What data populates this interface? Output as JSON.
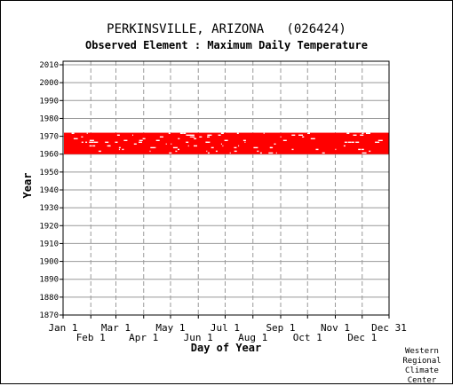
{
  "title": "PERKINSVILLE, ARIZONA   (026424)",
  "subtitle": "Observed Element : Maximum Daily Temperature",
  "credit": [
    "Western",
    "Regional",
    "Climate",
    "Center"
  ],
  "chart_data": {
    "type": "heatmap",
    "xlabel": "Day of Year",
    "ylabel": "Year",
    "xlim": [
      1,
      365
    ],
    "ylim": [
      1870,
      2012
    ],
    "month_ticks": [
      {
        "label": "Jan 1",
        "day": 1,
        "row": 0
      },
      {
        "label": "Feb 1",
        "day": 32,
        "row": 1
      },
      {
        "label": "Mar 1",
        "day": 60,
        "row": 0
      },
      {
        "label": "Apr 1",
        "day": 91,
        "row": 1
      },
      {
        "label": "May 1",
        "day": 121,
        "row": 0
      },
      {
        "label": "Jun 1",
        "day": 152,
        "row": 1
      },
      {
        "label": "Jul 1",
        "day": 182,
        "row": 0
      },
      {
        "label": "Aug 1",
        "day": 213,
        "row": 1
      },
      {
        "label": "Sep 1",
        "day": 244,
        "row": 0
      },
      {
        "label": "Oct 1",
        "day": 274,
        "row": 1
      },
      {
        "label": "Nov 1",
        "day": 305,
        "row": 0
      },
      {
        "label": "Dec 1",
        "day": 335,
        "row": 1
      },
      {
        "label": "Dec 31",
        "day": 365,
        "row": 0
      }
    ],
    "year_ticks": [
      1870,
      1880,
      1890,
      1900,
      1910,
      1920,
      1930,
      1940,
      1950,
      1960,
      1970,
      1980,
      1990,
      2000,
      2010
    ],
    "data_color": "#ff0000",
    "records": {
      "start_year": 1960,
      "end_year": 1971,
      "coverage": "nearly complete, scattered missing days"
    },
    "grid": true
  }
}
